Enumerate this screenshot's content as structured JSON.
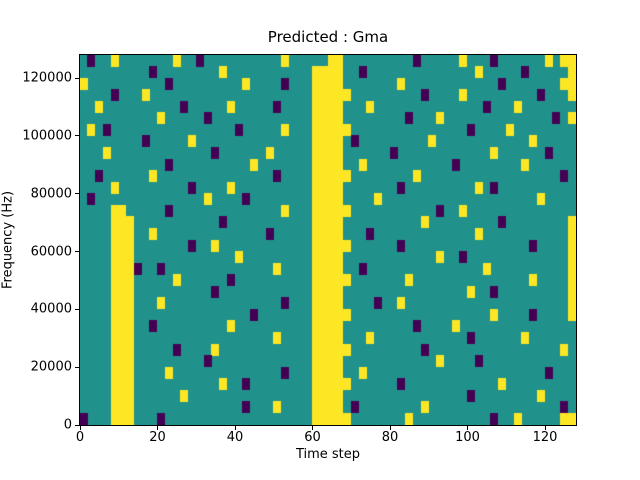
{
  "chart_data": {
    "type": "heatmap",
    "title": "Predicted : Gma",
    "xlabel": "Time step",
    "ylabel": "Frequency (Hz)",
    "xlim": [
      0,
      128
    ],
    "ylim": [
      0,
      128000
    ],
    "x_ticks": [
      0,
      20,
      40,
      60,
      80,
      100,
      120
    ],
    "y_ticks": [
      0,
      20000,
      40000,
      60000,
      80000,
      100000,
      120000
    ],
    "grid": false,
    "legend": "none",
    "colormap": "viridis",
    "cell_colors": {
      ".": "#21918c",
      "y": "#fde725",
      "d": "#440154"
    },
    "value_meaning": {
      ".": "mid",
      "y": "high",
      "d": "low"
    },
    "time_steps_per_column": 2,
    "hz_per_row": 4000,
    "rows_top_to_bottom": [
      [
        ".d..y...",
        "....y..d",
        "........",
        "..y.....",
        "yy......",
        "...d....",
        ".y...d..",
        "....y.yy"
      ],
      [
        "........",
        ".d......",
        "..y.....",
        "......yy",
        "yy..d...",
        "........",
        "...y....",
        ".d.....y"
      ],
      [
        "y.......",
        "...d....",
        ".....y..",
        "..d...yy",
        "yy......",
        ".y......",
        "......d.",
        "......yy"
      ],
      [
        "....d...",
        "y.......",
        "........",
        "......yy",
        "yyy.....",
        "....d...",
        ".y......",
        "...d...y"
      ],
      [
        "..y.....",
        ".....d..",
        "...y....",
        ".d....yy",
        "yy...y..",
        "........",
        "....d...",
        "y......."
      ],
      [
        "........",
        "..y.....",
        "d.......",
        "......yy",
        "yy......",
        "..d...y.",
        "........",
        ".....d.y"
      ],
      [
        ".y.d....",
        "........",
        "....d...",
        "..y...yy",
        "yyy.....",
        "........",
        "..d....y",
        "........"
      ],
      [
        "........",
        "d.....y.",
        "........",
        "......yy",
        "yy.d....",
        ".....y..",
        "........",
        "..y....."
      ],
      [
        "...y....",
        "........",
        ".d......",
        "y.....yy",
        "yy......",
        "d.......",
        ".....y..",
        "....d..."
      ],
      [
        "........",
        "...d....",
        "......y.",
        "......yy",
        "yy..y...",
        "........",
        "d.......",
        ".y......"
      ],
      [
        "..d.....",
        ".y......",
        "........",
        ".d....yy",
        "yyy.....",
        "...y....",
        "........",
        "......d."
      ],
      [
        "....y...",
        "......d.",
        "...y....",
        "......yy",
        "yy......",
        ".d......",
        "...y.d..",
        "........"
      ],
      [
        ".d......",
        "........",
        "y....d..",
        "......yy",
        "yy....y.",
        "........",
        "........",
        "...y...."
      ],
      [
        "....yy..",
        "...d....",
        "........",
        "..y...yy",
        "yyy.....",
        "......d.",
        ".y......",
        "........"
      ],
      [
        "....yyy.",
        "........",
        "..d.....",
        "......yy",
        "yy......",
        "....y...",
        "......d.",
        ".......y"
      ],
      [
        "....yyy.",
        ".y......",
        "........",
        "d.....yy",
        "yy...d..",
        "........",
        "...y....",
        ".......y"
      ],
      [
        "....yyy.",
        "......d.",
        ".y......",
        "......yy",
        "yyy.....",
        ".d......",
        "........",
        "..d....y"
      ],
      [
        "....yyy.",
        "........",
        "....y...",
        "......yy",
        "yy......",
        "......y.",
        ".d......",
        ".......y"
      ],
      [
        "....yyyd",
        "..d.....",
        "........",
        ".y....yy",
        "yy..d...",
        "........",
        "....y...",
        ".......y"
      ],
      [
        "....yyy.",
        "....y...",
        "...d....",
        "......yy",
        "yyy.....",
        "..y.....",
        "........",
        "..y....y"
      ],
      [
        "....yyy.",
        "........",
        ".d......",
        "......yy",
        "yy......",
        "........",
        "..y..d..",
        ".......y"
      ],
      [
        "....yyy.",
        "..y.....",
        "........",
        "..d...yy",
        "yy....d.",
        ".y......",
        "........",
        ".......y"
      ],
      [
        "....yyy.",
        "........",
        "......d.",
        "......yy",
        "yyy.....",
        "........",
        ".....y..",
        "..d....y"
      ],
      [
        "....yyy.",
        ".d......",
        "...y....",
        "......yy",
        "yy......",
        "...d....",
        "y.......",
        "........"
      ],
      [
        "....yyy.",
        "........",
        "........",
        ".y....yy",
        "yy...y..",
        "........",
        "..d.....",
        ".y......"
      ],
      [
        "....yyy.",
        "....d...",
        ".y......",
        "......yy",
        "yyy.....",
        "....d...",
        "........",
        "......y."
      ],
      [
        "....yyy.",
        "........",
        "d.......",
        "......yy",
        "yy......",
        "......y.",
        "...d....",
        "........"
      ],
      [
        "....yyy.",
        "...y....",
        "........",
        "..d...yy",
        "yy..y...",
        "........",
        "........",
        "....d..."
      ],
      [
        "....yyy.",
        "........",
        "..y..d..",
        "......yy",
        "yyy.....",
        ".d......",
        "......y.",
        "........"
      ],
      [
        "....yyy.",
        ".....y..",
        "........",
        "......yy",
        "yy......",
        "........",
        "..d.....",
        "...y...."
      ],
      [
        "....yyy.",
        "........",
        ".....d..",
        ".y....yy",
        "yy.d....",
        "....y...",
        "........",
        "......d."
      ],
      [
        "d...yyy.",
        "..d.....",
        "........",
        "......yy",
        "yyy.....",
        "..y.....",
        ".....d..",
        "y.....yy"
      ]
    ]
  }
}
